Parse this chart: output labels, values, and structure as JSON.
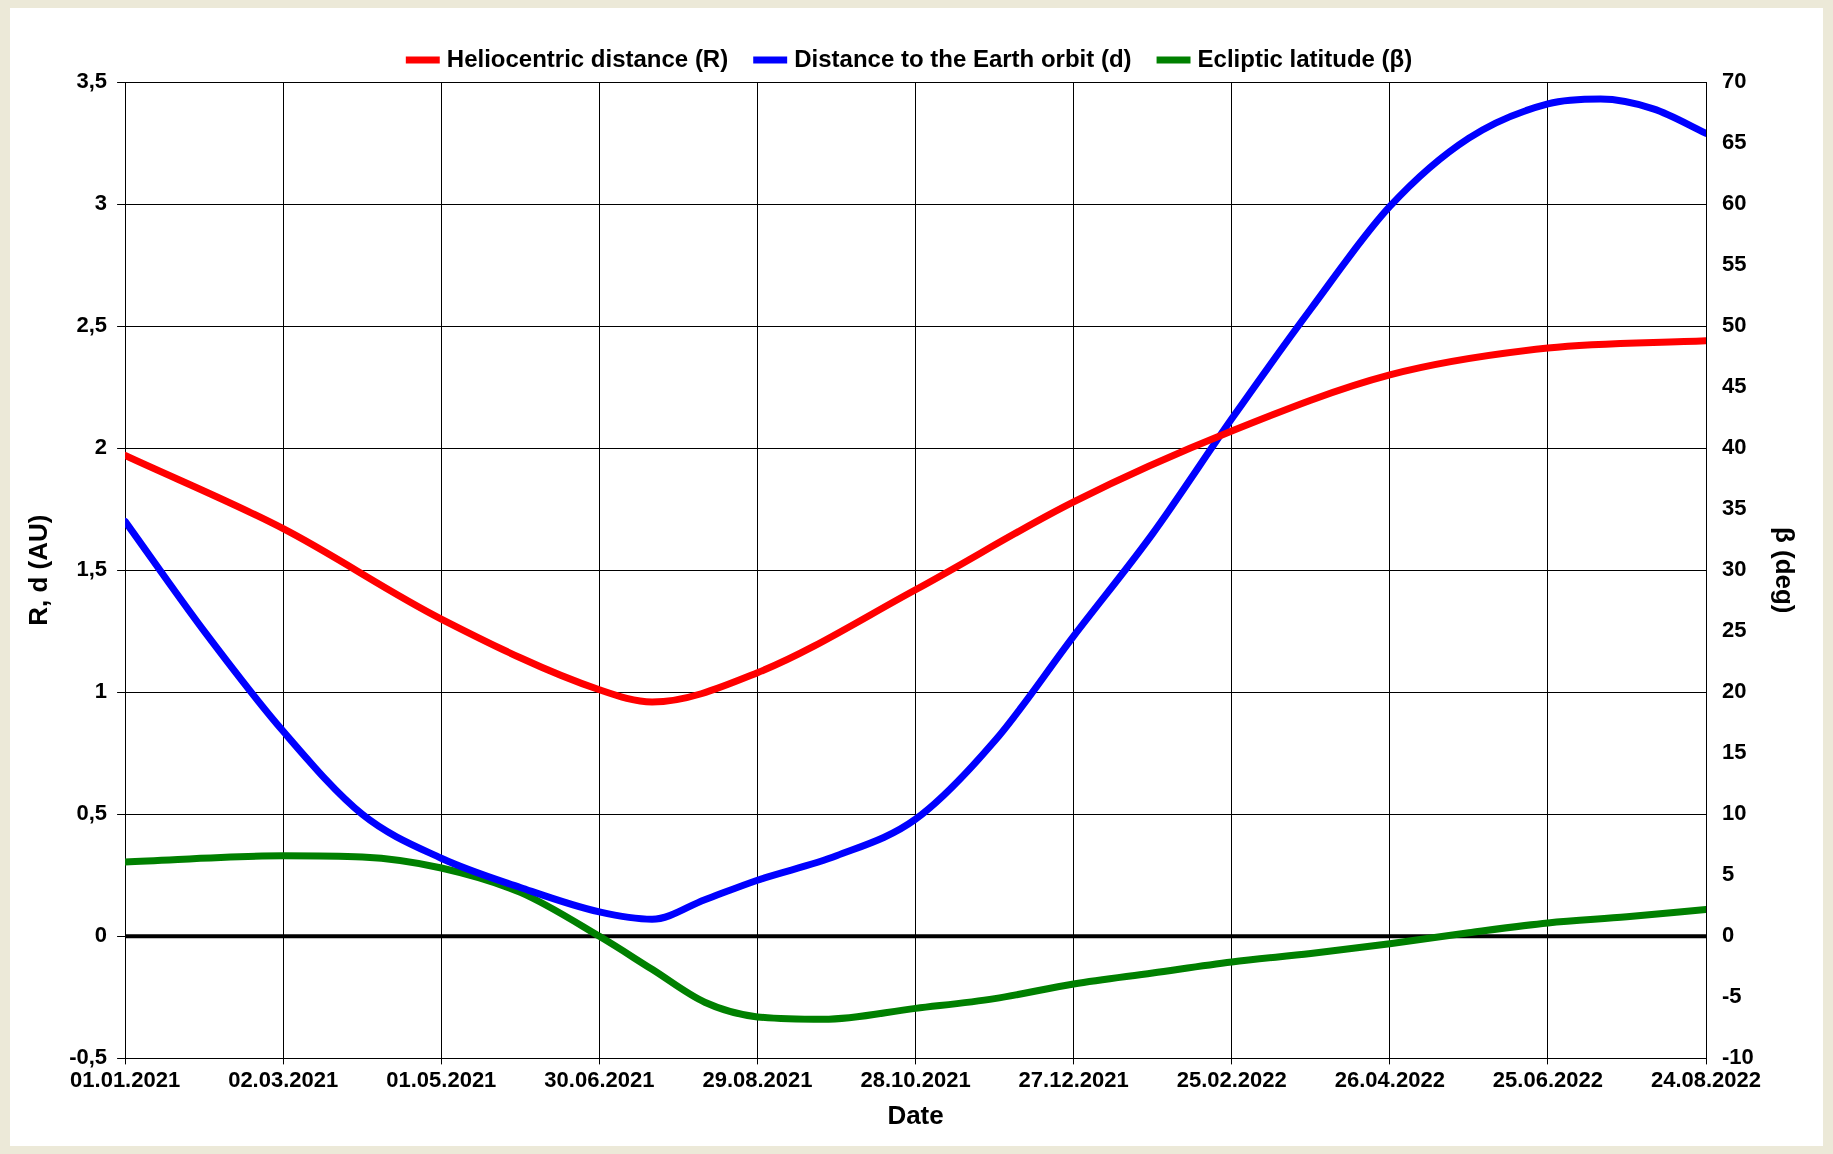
{
  "chart_data": {
    "type": "line",
    "xlabel": "Date",
    "ylabel": "R, d (AU)",
    "y2label": "β (deg)",
    "legend": "top",
    "grid": true,
    "marker": "none",
    "line_style": "solid",
    "xlim": [
      "2021-01-01",
      "2022-08-24"
    ],
    "xticks": [
      {
        "value": "2021-01-01",
        "label": "01.01.2021"
      },
      {
        "value": "2021-03-02",
        "label": "02.03.2021"
      },
      {
        "value": "2021-05-01",
        "label": "01.05.2021"
      },
      {
        "value": "2021-06-30",
        "label": "30.06.2021"
      },
      {
        "value": "2021-08-29",
        "label": "29.08.2021"
      },
      {
        "value": "2021-10-28",
        "label": "28.10.2021"
      },
      {
        "value": "2021-12-27",
        "label": "27.12.2021"
      },
      {
        "value": "2022-02-25",
        "label": "25.02.2022"
      },
      {
        "value": "2022-04-26",
        "label": "26.04.2022"
      },
      {
        "value": "2022-06-25",
        "label": "25.06.2022"
      },
      {
        "value": "2022-08-24",
        "label": "24.08.2022"
      }
    ],
    "ylim": [
      -0.5,
      3.5
    ],
    "yticks": [
      {
        "value": -0.5,
        "label": "-0,5"
      },
      0,
      {
        "value": 0.5,
        "label": "0,5"
      },
      1,
      {
        "value": 1.5,
        "label": "1,5"
      },
      2,
      {
        "value": 2.5,
        "label": "2,5"
      },
      3,
      {
        "value": 3.5,
        "label": "3,5"
      }
    ],
    "y2lim": [
      -10,
      70
    ],
    "y2ticks": [
      -10,
      -5,
      0,
      5,
      10,
      15,
      20,
      25,
      30,
      35,
      40,
      45,
      50,
      55,
      60,
      65,
      70
    ],
    "ref_lines": [
      {
        "axis": "y",
        "value": 0,
        "color": "#000000"
      }
    ],
    "series": [
      {
        "name": "Heliocentric distance (R)",
        "color": "#ff0000",
        "x": [
          "2021-01-01",
          "2021-03-02",
          "2021-05-01",
          "2021-06-30",
          "2021-07-20",
          "2021-08-29",
          "2021-10-28",
          "2021-12-27",
          "2022-02-25",
          "2022-04-26",
          "2022-06-25",
          "2022-08-24"
        ],
        "values": [
          1.97,
          1.67,
          1.3,
          1.01,
          0.96,
          1.08,
          1.42,
          1.78,
          2.07,
          2.3,
          2.41,
          2.44
        ]
      },
      {
        "name": "Distance to the Earth orbit (d)",
        "color": "#0000ff",
        "x": [
          "2021-01-01",
          "2021-01-31",
          "2021-03-02",
          "2021-04-01",
          "2021-05-01",
          "2021-05-31",
          "2021-06-30",
          "2021-07-20",
          "2021-08-09",
          "2021-08-29",
          "2021-09-28",
          "2021-10-28",
          "2021-11-27",
          "2021-12-27",
          "2022-01-26",
          "2022-02-25",
          "2022-03-27",
          "2022-04-26",
          "2022-05-26",
          "2022-06-25",
          "2022-07-15",
          "2022-08-04",
          "2022-08-24"
        ],
        "values": [
          1.7,
          1.25,
          0.84,
          0.5,
          0.32,
          0.2,
          0.1,
          0.07,
          0.15,
          0.23,
          0.33,
          0.48,
          0.8,
          1.23,
          1.65,
          2.12,
          2.57,
          2.99,
          3.27,
          3.41,
          3.43,
          3.39,
          3.29
        ]
      },
      {
        "name": "Ecliptic latitude (β)",
        "color": "#008000",
        "axis": "y2",
        "x": [
          "2021-01-01",
          "2021-03-02",
          "2021-04-01",
          "2021-05-01",
          "2021-05-31",
          "2021-06-30",
          "2021-07-20",
          "2021-08-09",
          "2021-08-29",
          "2021-09-23",
          "2021-10-28",
          "2021-11-27",
          "2021-12-27",
          "2022-01-26",
          "2022-02-25",
          "2022-03-27",
          "2022-04-26",
          "2022-05-26",
          "2022-06-25",
          "2022-07-25",
          "2022-08-24"
        ],
        "values": [
          6.1,
          6.6,
          6.5,
          5.6,
          3.6,
          0,
          -2.7,
          -5.4,
          -6.6,
          -6.8,
          -5.9,
          -5.1,
          -3.9,
          -3,
          -2.1,
          -1.4,
          -0.6,
          0.3,
          1.1,
          1.6,
          2.2
        ]
      }
    ]
  }
}
